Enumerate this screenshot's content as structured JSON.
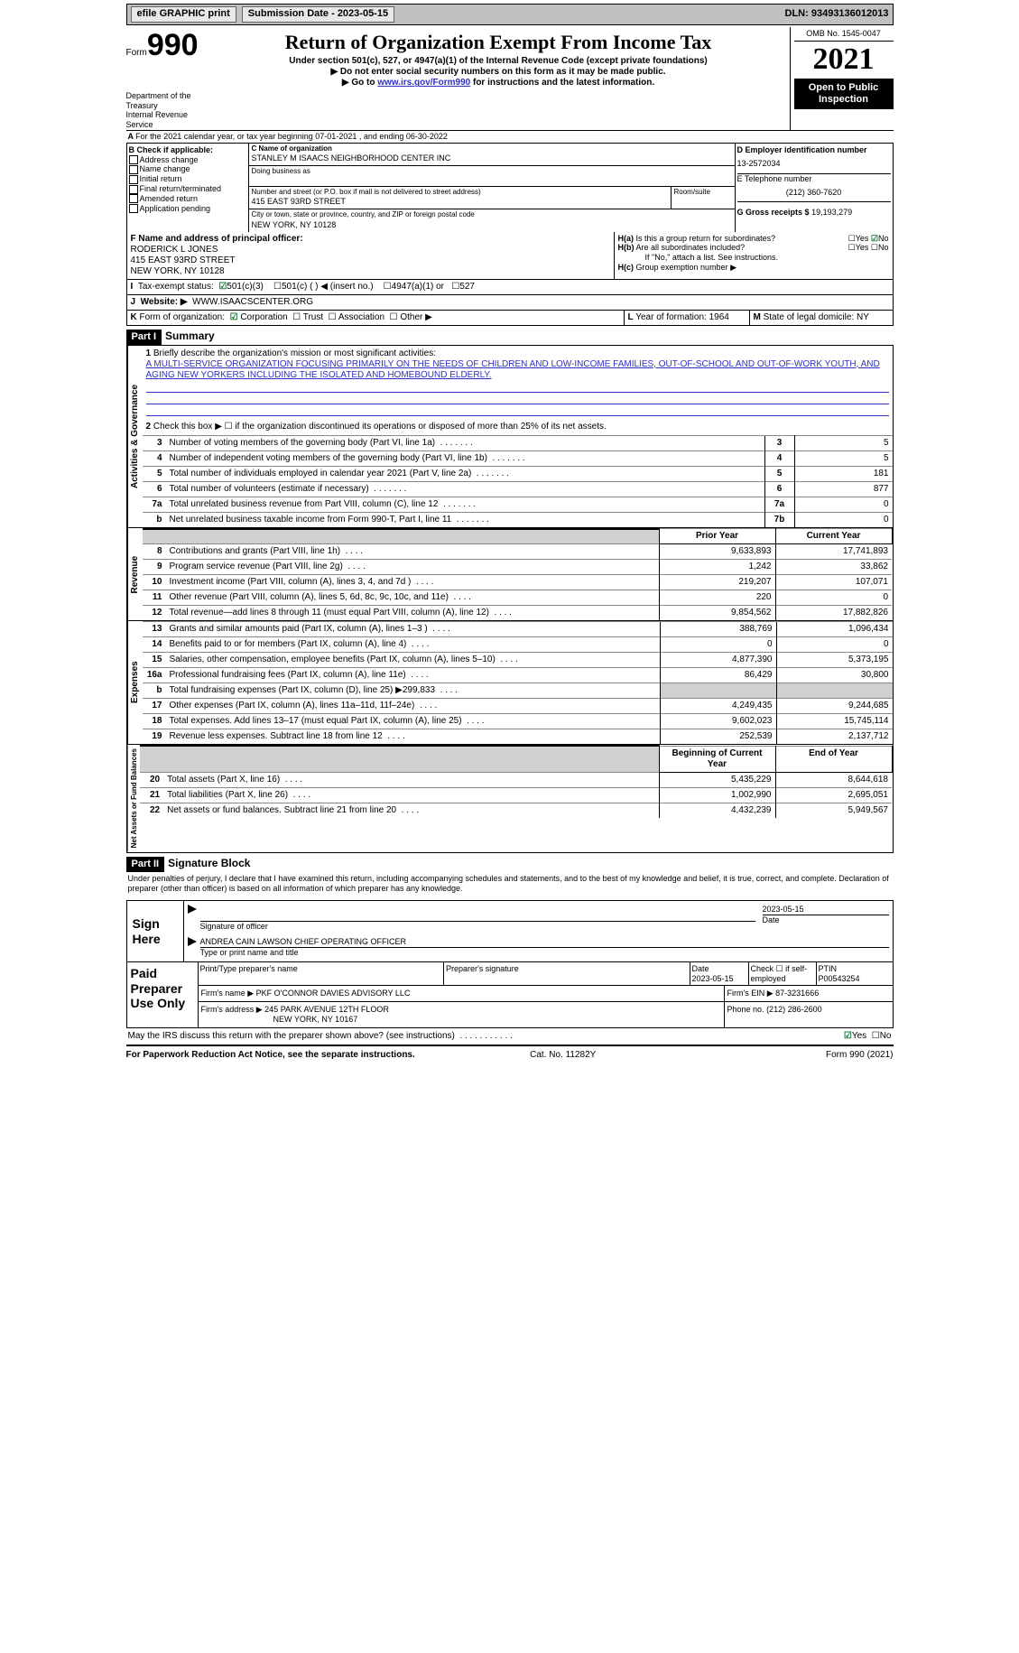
{
  "topbar": {
    "efile": "efile GRAPHIC print",
    "subdate_label": "Submission Date - 2023-05-15",
    "dln": "DLN: 93493136012013"
  },
  "header": {
    "form_label": "Form",
    "form_number": "990",
    "title": "Return of Organization Exempt From Income Tax",
    "subtitle": "Under section 501(c), 527, or 4947(a)(1) of the Internal Revenue Code (except private foundations)",
    "note1": "▶ Do not enter social security numbers on this form as it may be made public.",
    "note2_pre": "▶ Go to ",
    "note2_link": "www.irs.gov/Form990",
    "note2_post": " for instructions and the latest information.",
    "dept": "Department of the Treasury\nInternal Revenue Service",
    "omb": "OMB No. 1545-0047",
    "tax_year": "2021",
    "otp": "Open to Public Inspection"
  },
  "A": {
    "text": "For the 2021 calendar year, or tax year beginning 07-01-2021   , and ending 06-30-2022"
  },
  "B": {
    "label": "B Check if applicable:",
    "opts": [
      "Address change",
      "Name change",
      "Initial return",
      "Final return/terminated",
      "Amended return",
      "Application pending"
    ]
  },
  "C": {
    "name_label": "C Name of organization",
    "name": "STANLEY M ISAACS NEIGHBORHOOD CENTER INC",
    "dba_label": "Doing business as",
    "street_label": "Number and street (or P.O. box if mail is not delivered to street address)",
    "room_label": "Room/suite",
    "street": "415 EAST 93RD STREET",
    "city_label": "City or town, state or province, country, and ZIP or foreign postal code",
    "city": "NEW YORK, NY  10128"
  },
  "D": {
    "label": "D Employer identification number",
    "val": "13-2572034"
  },
  "E": {
    "label": "E Telephone number",
    "val": "(212) 360-7620"
  },
  "G": {
    "label": "G Gross receipts $",
    "val": "19,193,279"
  },
  "F": {
    "label": "F Name and address of principal officer:",
    "name": "RODERICK L JONES",
    "addr1": "415 EAST 93RD STREET",
    "addr2": "NEW YORK, NY  10128"
  },
  "H": {
    "a": "Is this a group return for subordinates?",
    "b": "Are all subordinates included?",
    "b_note": "If \"No,\" attach a list. See instructions.",
    "c": "Group exemption number ▶",
    "yes": "Yes",
    "no": "No"
  },
  "I": {
    "label": "Tax-exempt status:",
    "o1": "501(c)(3)",
    "o2": "501(c) (  ) ◀ (insert no.)",
    "o3": "4947(a)(1) or",
    "o4": "527"
  },
  "J": {
    "label": "Website: ▶",
    "val": "WWW.ISAACSCENTER.ORG"
  },
  "K": {
    "label": "Form of organization:",
    "o1": "Corporation",
    "o2": "Trust",
    "o3": "Association",
    "o4": "Other ▶"
  },
  "L": {
    "label": "Year of formation:",
    "val": "1964"
  },
  "M": {
    "label": "State of legal domicile:",
    "val": "NY"
  },
  "part1": {
    "bar": "Part I",
    "title": "Summary",
    "l1_label": "Briefly describe the organization's mission or most significant activities:",
    "mission": "A MULTI-SERVICE ORGANIZATION FOCUSING PRIMARILY ON THE NEEDS OF CHILDREN AND LOW-INCOME FAMILIES, OUT-OF-SCHOOL AND OUT-OF-WORK YOUTH, AND AGING NEW YORKERS INCLUDING THE ISOLATED AND HOMEBOUND ELDERLY.",
    "l2": "Check this box ▶ ☐ if the organization discontinued its operations or disposed of more than 25% of its net assets.",
    "lines_gov": [
      {
        "n": "3",
        "t": "Number of voting members of the governing body (Part VI, line 1a)",
        "box": "3",
        "v": "5"
      },
      {
        "n": "4",
        "t": "Number of independent voting members of the governing body (Part VI, line 1b)",
        "box": "4",
        "v": "5"
      },
      {
        "n": "5",
        "t": "Total number of individuals employed in calendar year 2021 (Part V, line 2a)",
        "box": "5",
        "v": "181"
      },
      {
        "n": "6",
        "t": "Total number of volunteers (estimate if necessary)",
        "box": "6",
        "v": "877"
      },
      {
        "n": "7a",
        "t": "Total unrelated business revenue from Part VIII, column (C), line 12",
        "box": "7a",
        "v": "0"
      },
      {
        "n": "b",
        "t": "Net unrelated business taxable income from Form 990-T, Part I, line 11",
        "box": "7b",
        "v": "0"
      }
    ],
    "col_prior": "Prior Year",
    "col_current": "Current Year",
    "lines_rev": [
      {
        "n": "8",
        "t": "Contributions and grants (Part VIII, line 1h)",
        "p": "9,633,893",
        "c": "17,741,893"
      },
      {
        "n": "9",
        "t": "Program service revenue (Part VIII, line 2g)",
        "p": "1,242",
        "c": "33,862"
      },
      {
        "n": "10",
        "t": "Investment income (Part VIII, column (A), lines 3, 4, and 7d )",
        "p": "219,207",
        "c": "107,071"
      },
      {
        "n": "11",
        "t": "Other revenue (Part VIII, column (A), lines 5, 6d, 8c, 9c, 10c, and 11e)",
        "p": "220",
        "c": "0"
      },
      {
        "n": "12",
        "t": "Total revenue—add lines 8 through 11 (must equal Part VIII, column (A), line 12)",
        "p": "9,854,562",
        "c": "17,882,826"
      }
    ],
    "lines_exp": [
      {
        "n": "13",
        "t": "Grants and similar amounts paid (Part IX, column (A), lines 1–3 )",
        "p": "388,769",
        "c": "1,096,434"
      },
      {
        "n": "14",
        "t": "Benefits paid to or for members (Part IX, column (A), line 4)",
        "p": "0",
        "c": "0"
      },
      {
        "n": "15",
        "t": "Salaries, other compensation, employee benefits (Part IX, column (A), lines 5–10)",
        "p": "4,877,390",
        "c": "5,373,195"
      },
      {
        "n": "16a",
        "t": "Professional fundraising fees (Part IX, column (A), line 11e)",
        "p": "86,429",
        "c": "30,800"
      },
      {
        "n": "b",
        "t": "Total fundraising expenses (Part IX, column (D), line 25) ▶299,833",
        "p": "",
        "c": "",
        "shade": true
      },
      {
        "n": "17",
        "t": "Other expenses (Part IX, column (A), lines 11a–11d, 11f–24e)",
        "p": "4,249,435",
        "c": "9,244,685"
      },
      {
        "n": "18",
        "t": "Total expenses. Add lines 13–17 (must equal Part IX, column (A), line 25)",
        "p": "9,602,023",
        "c": "15,745,114"
      },
      {
        "n": "19",
        "t": "Revenue less expenses. Subtract line 18 from line 12",
        "p": "252,539",
        "c": "2,137,712"
      }
    ],
    "col_beg": "Beginning of Current Year",
    "col_end": "End of Year",
    "lines_net": [
      {
        "n": "20",
        "t": "Total assets (Part X, line 16)",
        "p": "5,435,229",
        "c": "8,644,618"
      },
      {
        "n": "21",
        "t": "Total liabilities (Part X, line 26)",
        "p": "1,002,990",
        "c": "2,695,051"
      },
      {
        "n": "22",
        "t": "Net assets or fund balances. Subtract line 21 from line 20",
        "p": "4,432,239",
        "c": "5,949,567"
      }
    ],
    "vtab_gov": "Activities & Governance",
    "vtab_rev": "Revenue",
    "vtab_exp": "Expenses",
    "vtab_net": "Net Assets or Fund Balances"
  },
  "part2": {
    "bar": "Part II",
    "title": "Signature Block",
    "jurat": "Under penalties of perjury, I declare that I have examined this return, including accompanying schedules and statements, and to the best of my knowledge and belief, it is true, correct, and complete. Declaration of preparer (other than officer) is based on all information of which preparer has any knowledge."
  },
  "sign": {
    "here": "Sign Here",
    "sig_label": "Signature of officer",
    "date_label": "Date",
    "date": "2023-05-15",
    "name": "ANDREA CAIN LAWSON  CHIEF OPERATING OFFICER",
    "name_label": "Type or print name and title"
  },
  "paid": {
    "label": "Paid Preparer Use Only",
    "h1": "Print/Type preparer's name",
    "h2": "Preparer's signature",
    "h3": "Date",
    "h3v": "2023-05-15",
    "h4": "Check ☐ if self-employed",
    "h5": "PTIN",
    "h5v": "P00543254",
    "firm_label": "Firm's name   ▶",
    "firm": "PKF O'CONNOR DAVIES ADVISORY LLC",
    "ein_label": "Firm's EIN ▶",
    "ein": "87-3231666",
    "addr_label": "Firm's address ▶",
    "addr": "245 PARK AVENUE 12TH FLOOR",
    "city": "NEW YORK, NY  10167",
    "phone_label": "Phone no.",
    "phone": "(212) 286-2600"
  },
  "may_irs": "May the IRS discuss this return with the preparer shown above? (see instructions)",
  "footer": {
    "l": "For Paperwork Reduction Act Notice, see the separate instructions.",
    "m": "Cat. No. 11282Y",
    "r": "Form 990 (2021)"
  }
}
